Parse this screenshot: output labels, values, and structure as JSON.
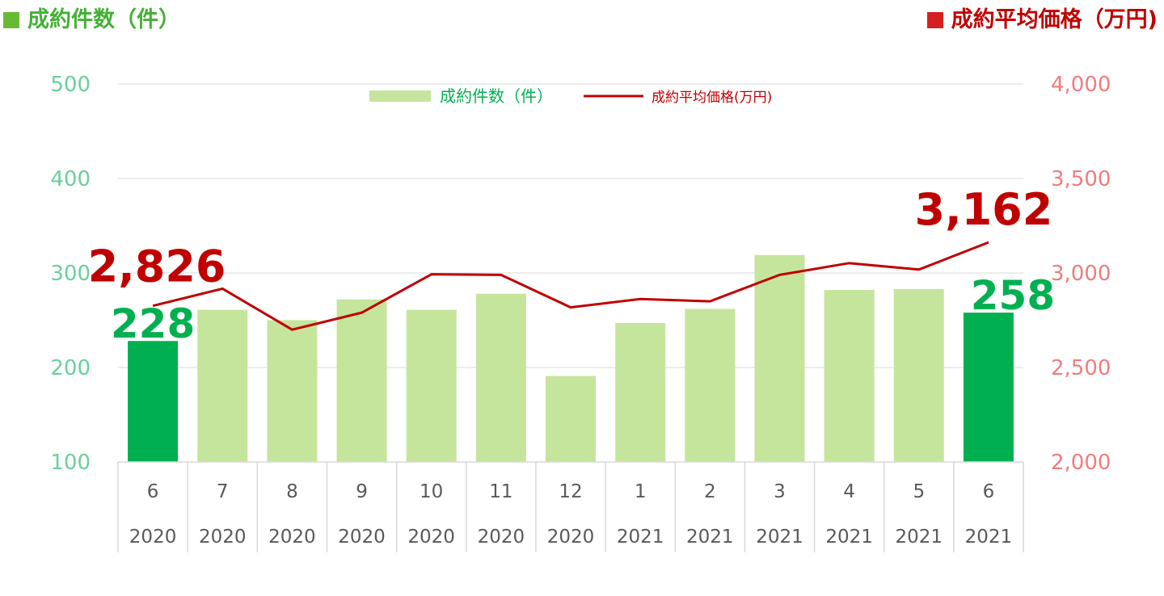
{
  "header": {
    "left_title": "成約件数（件）",
    "right_title": "成約平均価格（万円)"
  },
  "colors": {
    "bar_light": "#c5e59d",
    "bar_dark": "#00b050",
    "line": "#c00000",
    "left_axis": "#6dcf9c",
    "right_axis": "#ef7d7d",
    "header_left": "#44b035",
    "header_right": "#c00000",
    "header_square_left": "#66bb33",
    "header_square_right": "#d42020"
  },
  "chart_data": {
    "type": "bar",
    "categories": [
      "6",
      "7",
      "8",
      "9",
      "10",
      "11",
      "12",
      "1",
      "2",
      "3",
      "4",
      "5",
      "6"
    ],
    "years": [
      "2020",
      "2020",
      "2020",
      "2020",
      "2020",
      "2020",
      "2020",
      "2021",
      "2021",
      "2021",
      "2021",
      "2021",
      "2021"
    ],
    "y_left": {
      "min": 100,
      "max": 500,
      "ticks": [
        "100",
        "200",
        "300",
        "400",
        "500"
      ]
    },
    "y_right": {
      "min": 2000,
      "max": 4000,
      "ticks": [
        "2,000",
        "2,500",
        "3,000",
        "3,500",
        "4,000"
      ]
    },
    "grid": true,
    "legend_position": "top-center",
    "series": [
      {
        "name": "成約件数（件）",
        "type": "bar",
        "axis": "left",
        "values": [
          228,
          261,
          250,
          272,
          261,
          278,
          191,
          247,
          262,
          319,
          282,
          283,
          258
        ],
        "highlight_indices": [
          0,
          12
        ]
      },
      {
        "name": "成約平均価格(万円)",
        "type": "line",
        "axis": "right",
        "values": [
          2826,
          2917,
          2700,
          2790,
          2993,
          2990,
          2818,
          2862,
          2850,
          2990,
          3052,
          3018,
          3162
        ]
      }
    ],
    "annotations": [
      {
        "series": 0,
        "index": 0,
        "label": "228"
      },
      {
        "series": 0,
        "index": 12,
        "label": "258"
      },
      {
        "series": 1,
        "index": 0,
        "label": "2,826"
      },
      {
        "series": 1,
        "index": 12,
        "label": "3,162"
      }
    ]
  }
}
